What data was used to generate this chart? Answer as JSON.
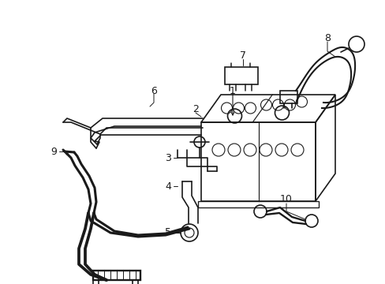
{
  "background_color": "#ffffff",
  "line_color": "#1a1a1a",
  "lw": 1.2,
  "figsize": [
    4.89,
    3.6
  ],
  "dpi": 100,
  "label_fontsize": 9
}
